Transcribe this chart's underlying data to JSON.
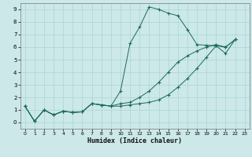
{
  "xlabel": "Humidex (Indice chaleur)",
  "xlim": [
    -0.5,
    23.5
  ],
  "ylim": [
    -0.5,
    9.5
  ],
  "xticks": [
    0,
    1,
    2,
    3,
    4,
    5,
    6,
    7,
    8,
    9,
    10,
    11,
    12,
    13,
    14,
    15,
    16,
    17,
    18,
    19,
    20,
    21,
    22,
    23
  ],
  "yticks": [
    0,
    1,
    2,
    3,
    4,
    5,
    6,
    7,
    8,
    9
  ],
  "bg_color": "#cce8e8",
  "grid_color": "#aad4d4",
  "line_color": "#1a6b5a",
  "line1_x": [
    0,
    1,
    2,
    3,
    4,
    5,
    6,
    7,
    8,
    9,
    10,
    11,
    12,
    13,
    14,
    15,
    16,
    17,
    18,
    19,
    20,
    21,
    22
  ],
  "line1_y": [
    1.3,
    0.1,
    1.0,
    0.6,
    0.9,
    0.8,
    0.85,
    1.5,
    1.4,
    1.3,
    2.5,
    6.3,
    7.6,
    9.2,
    9.0,
    8.7,
    8.5,
    7.4,
    6.2,
    6.15,
    6.1,
    5.5,
    6.6
  ],
  "line2_x": [
    0,
    1,
    2,
    3,
    4,
    5,
    6,
    7,
    8,
    9,
    10,
    11,
    12,
    13,
    14,
    15,
    16,
    17,
    18,
    19,
    20,
    21,
    22
  ],
  "line2_y": [
    1.3,
    0.1,
    1.0,
    0.6,
    0.9,
    0.8,
    0.85,
    1.5,
    1.4,
    1.3,
    1.5,
    1.6,
    2.0,
    2.5,
    3.2,
    4.0,
    4.8,
    5.3,
    5.7,
    6.0,
    6.2,
    6.0,
    6.6
  ],
  "line3_x": [
    0,
    1,
    2,
    3,
    4,
    5,
    6,
    7,
    8,
    9,
    10,
    11,
    12,
    13,
    14,
    15,
    16,
    17,
    18,
    19,
    20,
    21,
    22
  ],
  "line3_y": [
    1.3,
    0.1,
    1.0,
    0.6,
    0.9,
    0.8,
    0.85,
    1.5,
    1.4,
    1.3,
    1.3,
    1.4,
    1.5,
    1.6,
    1.8,
    2.2,
    2.8,
    3.5,
    4.3,
    5.2,
    6.1,
    6.0,
    6.6
  ]
}
